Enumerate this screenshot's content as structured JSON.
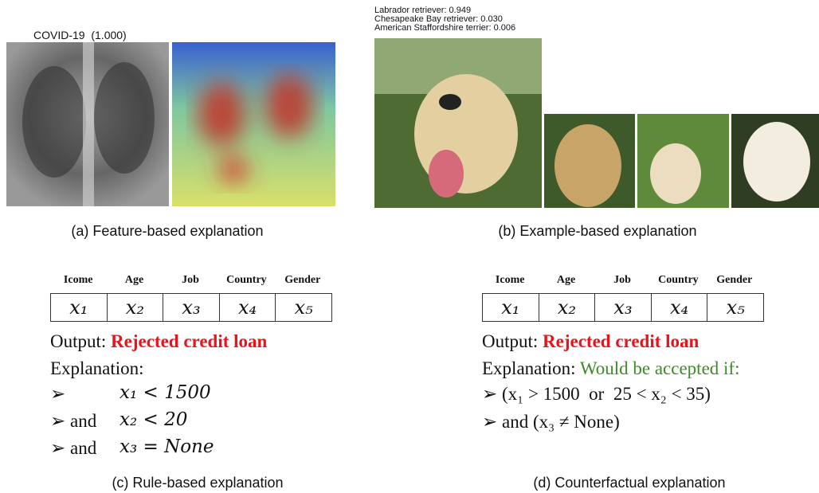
{
  "panels": [
    {
      "label": "COVID-19  (1.000)",
      "caption": "(a) Feature-based explanation"
    },
    {
      "predictions": [
        "Labrador retriever: 0.949",
        "Chesapeake Bay retriever: 0.030",
        "American Staffordshire terrier: 0.006"
      ],
      "caption": "(b) Example-based explanation"
    },
    {
      "table": {
        "headers": [
          "Icome",
          "Age",
          "Job",
          "Country",
          "Gender"
        ],
        "cells": [
          "x₁",
          "x₂",
          "x₃",
          "x₄",
          "x₅"
        ]
      },
      "output_label": "Output:",
      "output": "Rejected credit loan",
      "explanation_label": "Explanation:",
      "rules": [
        [
          "➢",
          "x₁ < 1500"
        ],
        [
          "➢ and",
          "x₂ < 20"
        ],
        [
          "➢ and",
          "x₃ = None"
        ]
      ],
      "caption": "(c) Rule-based explanation"
    },
    {
      "table": {
        "headers": [
          "Icome",
          "Age",
          "Job",
          "Country",
          "Gender"
        ],
        "cells": [
          "x₁",
          "x₂",
          "x₃",
          "x₄",
          "x₅"
        ]
      },
      "output_label": "Output:",
      "output": "Rejected credit loan",
      "explanation_label": "Explanation:",
      "explanation": "Would be accepted if:",
      "rules": [
        "➢ (x₁ > 1500  or  25 < x₂ < 35)",
        "➢ and (x₃ ≠ None)"
      ],
      "caption": "(d) Counterfactual explanation"
    }
  ]
}
